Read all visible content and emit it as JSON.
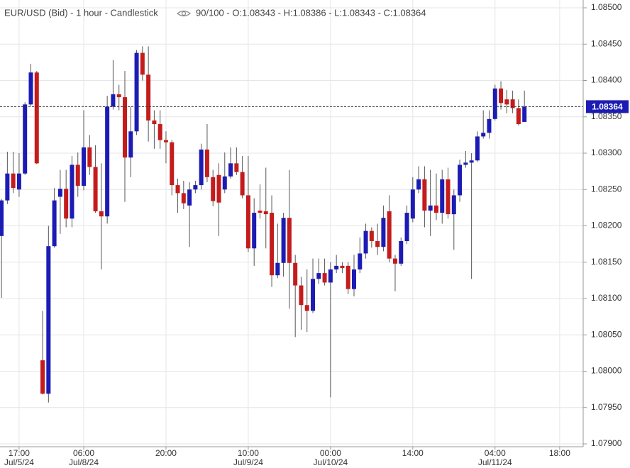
{
  "chart_data": {
    "type": "candlestick",
    "title": "EUR/USD (Bid) - 1 hour - Candlestick",
    "info": "90/100 - O:1.08343 - H:1.08386 - L:1.08343 - C:1.08364",
    "up_color": "#1c1cb4",
    "down_color": "#c41c1c",
    "last_price": 1.08364,
    "last_price_color": "#1c1cb4",
    "grid": true,
    "ylim": [
      1.079,
      1.085
    ],
    "yticks": [
      {
        "value": 1.085,
        "label": "1.08500"
      },
      {
        "value": 1.0845,
        "label": "1.08450"
      },
      {
        "value": 1.084,
        "label": "1.08400"
      },
      {
        "value": 1.0835,
        "label": "1.08350"
      },
      {
        "value": 1.083,
        "label": "1.08300"
      },
      {
        "value": 1.0825,
        "label": "1.08250"
      },
      {
        "value": 1.082,
        "label": "1.08200"
      },
      {
        "value": 1.0815,
        "label": "1.08150"
      },
      {
        "value": 1.081,
        "label": "1.08100"
      },
      {
        "value": 1.0805,
        "label": "1.08050"
      },
      {
        "value": 1.08,
        "label": "1.08000"
      },
      {
        "value": 1.0795,
        "label": "1.07950"
      },
      {
        "value": 1.079,
        "label": "1.07900"
      }
    ],
    "xlim": [
      -0.25,
      99
    ],
    "xticks": [
      {
        "value": 3,
        "label": "17:00",
        "date": "Jul/5/24"
      },
      {
        "value": 14,
        "label": "06:00",
        "date": "Jul/8/24"
      },
      {
        "value": 28,
        "label": "20:00"
      },
      {
        "value": 42,
        "label": "10:00",
        "date": "Jul/9/24"
      },
      {
        "value": 56,
        "label": "00:00",
        "date": "Jul/10/24"
      },
      {
        "value": 70,
        "label": "14:00"
      },
      {
        "value": 84,
        "label": "04:00",
        "date": "Jul/11/24"
      },
      {
        "value": 95,
        "label": "18:00"
      }
    ],
    "open": [
      1.08186,
      1.08235,
      1.08272,
      1.0825,
      1.08272,
      1.08367,
      1.08411,
      1.08015,
      1.07969,
      1.08172,
      1.0824,
      1.08251,
      1.0821,
      1.08284,
      1.08255,
      1.08308,
      1.08281,
      1.0822,
      1.08213,
      1.08364,
      1.08381,
      1.08377,
      1.08294,
      1.0833,
      1.08438,
      1.08408,
      1.08345,
      1.0834,
      1.08318,
      1.08315,
      1.08256,
      1.08245,
      1.08228,
      1.0825,
      1.08256,
      1.08305,
      1.08267,
      1.0827,
      1.0825,
      1.08268,
      1.08286,
      1.08274,
      1.08242,
      1.08169,
      1.08221,
      1.0822,
      1.08218,
      1.08132,
      1.08149,
      1.08211,
      1.08149,
      1.08118,
      1.08091,
      1.08083,
      1.08127,
      1.08135,
      1.08122,
      1.0814,
      1.08145,
      1.08145,
      1.08113,
      1.0814,
      1.08162,
      1.08193,
      1.08179,
      1.08171,
      1.0822,
      1.08155,
      1.08148,
      1.08179,
      1.0821,
      1.0825,
      1.08264,
      1.08221,
      1.08228,
      1.08218,
      1.08264,
      1.08216,
      1.08242,
      1.08284,
      1.08287,
      1.0829,
      1.08323,
      1.08328,
      1.08347,
      1.08389,
      1.08374,
      1.08374,
      1.08362,
      1.08343
    ],
    "high": [
      1.08237,
      1.08302,
      1.08302,
      1.083,
      1.0837,
      1.08423,
      1.08413,
      1.08083,
      1.082,
      1.08252,
      1.08277,
      1.08277,
      1.08296,
      1.08301,
      1.08359,
      1.08325,
      1.08311,
      1.08286,
      1.08379,
      1.08428,
      1.08394,
      1.08413,
      1.08364,
      1.08442,
      1.08447,
      1.08447,
      1.08359,
      1.08359,
      1.0833,
      1.08318,
      1.08265,
      1.08262,
      1.0826,
      1.08262,
      1.08313,
      1.0834,
      1.08277,
      1.08286,
      1.08301,
      1.08308,
      1.08308,
      1.08296,
      1.08296,
      1.08238,
      1.08257,
      1.0828,
      1.08242,
      1.08203,
      1.08218,
      1.08277,
      1.0816,
      1.0813,
      1.0814,
      1.08155,
      1.08155,
      1.08155,
      1.0815,
      1.0816,
      1.0815,
      1.0815,
      1.0816,
      1.08184,
      1.08203,
      1.08198,
      1.08203,
      1.08228,
      1.08242,
      1.0816,
      1.08184,
      1.08228,
      1.08267,
      1.08282,
      1.08282,
      1.08277,
      1.08272,
      1.08277,
      1.0828,
      1.0825,
      1.08291,
      1.08303,
      1.083,
      1.0833,
      1.08359,
      1.08359,
      1.08394,
      1.08399,
      1.08387,
      1.08386,
      1.08374,
      1.08386
    ],
    "low": [
      1.08101,
      1.0823,
      1.08245,
      1.0824,
      1.0827,
      1.08365,
      1.08285,
      1.07968,
      1.07957,
      1.0817,
      1.08189,
      1.08198,
      1.08198,
      1.0824,
      1.08249,
      1.0827,
      1.08218,
      1.0814,
      1.08203,
      1.0836,
      1.08359,
      1.08233,
      1.08267,
      1.08325,
      1.084,
      1.08316,
      1.08306,
      1.08306,
      1.08286,
      1.08242,
      1.08218,
      1.08223,
      1.08171,
      1.08245,
      1.0825,
      1.0826,
      1.08227,
      1.08186,
      1.08245,
      1.08265,
      1.0827,
      1.08238,
      1.08164,
      1.08145,
      1.0821,
      1.08169,
      1.08116,
      1.08128,
      1.0813,
      1.08086,
      1.08047,
      1.08057,
      1.08054,
      1.0808,
      1.0812,
      1.08118,
      1.07964,
      1.08135,
      1.08135,
      1.08106,
      1.08103,
      1.08135,
      1.08155,
      1.0817,
      1.0816,
      1.08165,
      1.0815,
      1.0811,
      1.08145,
      1.08175,
      1.08205,
      1.08245,
      1.08198,
      1.08186,
      1.08208,
      1.08203,
      1.0821,
      1.08167,
      1.08233,
      1.0828,
      1.08127,
      1.08288,
      1.0832,
      1.0832,
      1.08345,
      1.0836,
      1.08355,
      1.08355,
      1.08338,
      1.08343
    ],
    "close": [
      1.08235,
      1.08272,
      1.08252,
      1.08272,
      1.08367,
      1.08411,
      1.08286,
      1.07969,
      1.08172,
      1.08235,
      1.08251,
      1.0821,
      1.08284,
      1.08255,
      1.08308,
      1.08281,
      1.0822,
      1.08213,
      1.08364,
      1.08381,
      1.08377,
      1.08294,
      1.0833,
      1.08438,
      1.08408,
      1.08345,
      1.0834,
      1.08318,
      1.08315,
      1.08256,
      1.08245,
      1.08231,
      1.0825,
      1.08256,
      1.08305,
      1.08267,
      1.08234,
      1.08232,
      1.08268,
      1.08286,
      1.08274,
      1.08242,
      1.08169,
      1.08218,
      1.08218,
      1.08216,
      1.08132,
      1.08149,
      1.08211,
      1.08149,
      1.08118,
      1.08091,
      1.08083,
      1.08127,
      1.08135,
      1.08122,
      1.0814,
      1.08145,
      1.08142,
      1.08113,
      1.0814,
      1.08162,
      1.08193,
      1.08179,
      1.08171,
      1.08211,
      1.08155,
      1.08148,
      1.08179,
      1.08218,
      1.0825,
      1.08264,
      1.08221,
      1.08228,
      1.08218,
      1.08264,
      1.08216,
      1.08242,
      1.08284,
      1.08287,
      1.0829,
      1.08323,
      1.08328,
      1.08347,
      1.08389,
      1.08369,
      1.08367,
      1.08362,
      1.0834,
      1.08364
    ]
  }
}
